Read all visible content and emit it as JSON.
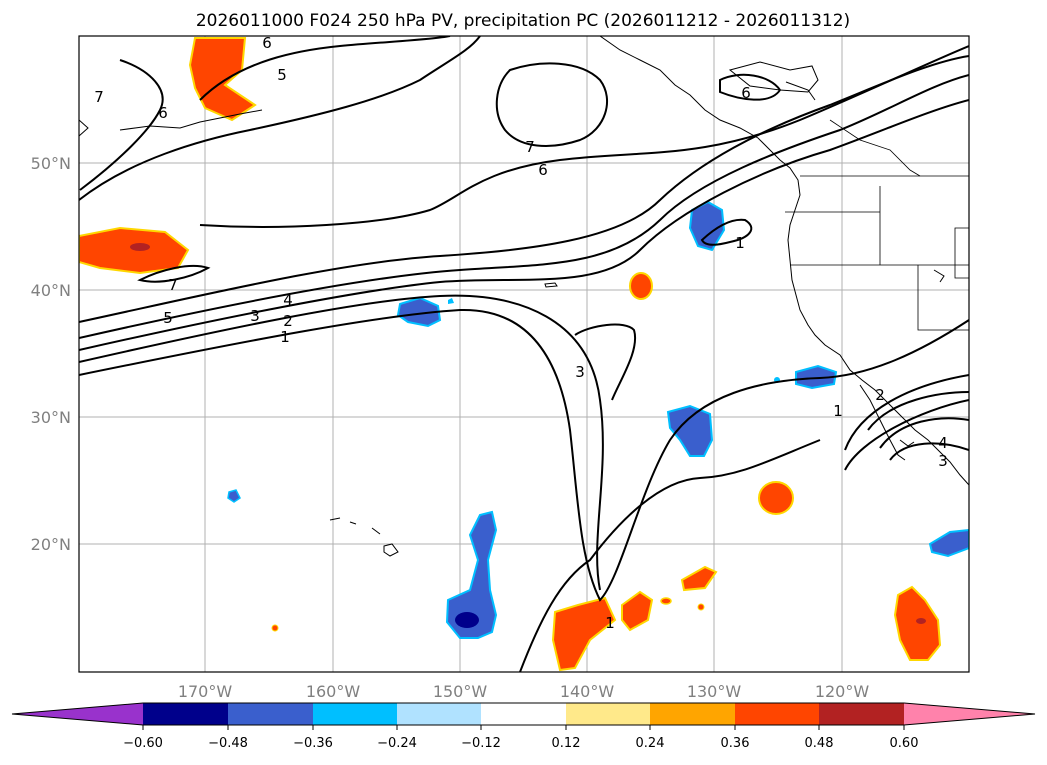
{
  "title": "2026011000 F024 250 hPa PV, precipitation PC (2026011212 - 2026011312)",
  "lat_labels": [
    "50°N",
    "40°N",
    "30°N",
    "20°N"
  ],
  "lon_labels": [
    "170°W",
    "160°W",
    "150°W",
    "140°W",
    "130°W",
    "120°W"
  ],
  "colorbar": {
    "ticks": [
      "−0.60",
      "−0.48",
      "−0.36",
      "−0.24",
      "−0.12",
      "0.12",
      "0.24",
      "0.36",
      "0.48",
      "0.60"
    ],
    "colors": [
      "#9932cc",
      "#00008b",
      "#3a5fcd",
      "#00bfff",
      "#b0e2ff",
      "#ffffff",
      "#ffe98a",
      "#ffa500",
      "#ff4500",
      "#b22222",
      "#ff82ab"
    ]
  },
  "pv_contour_labels": {
    "c7_nw": "7",
    "c6_nw": "6",
    "c6_top": "6",
    "c5_top": "5",
    "c7_mid": "7",
    "c6_mid": "6",
    "c6_ne": "6",
    "c7_west": "7",
    "c5": "5",
    "c3": "3",
    "c4": "4",
    "c2": "2",
    "c1": "1",
    "c1_ore": "1",
    "c3_mid": "3",
    "c1_south": "1",
    "c1_low": "1",
    "c2_low": "2",
    "c4_low": "4",
    "c3_low": "3"
  }
}
